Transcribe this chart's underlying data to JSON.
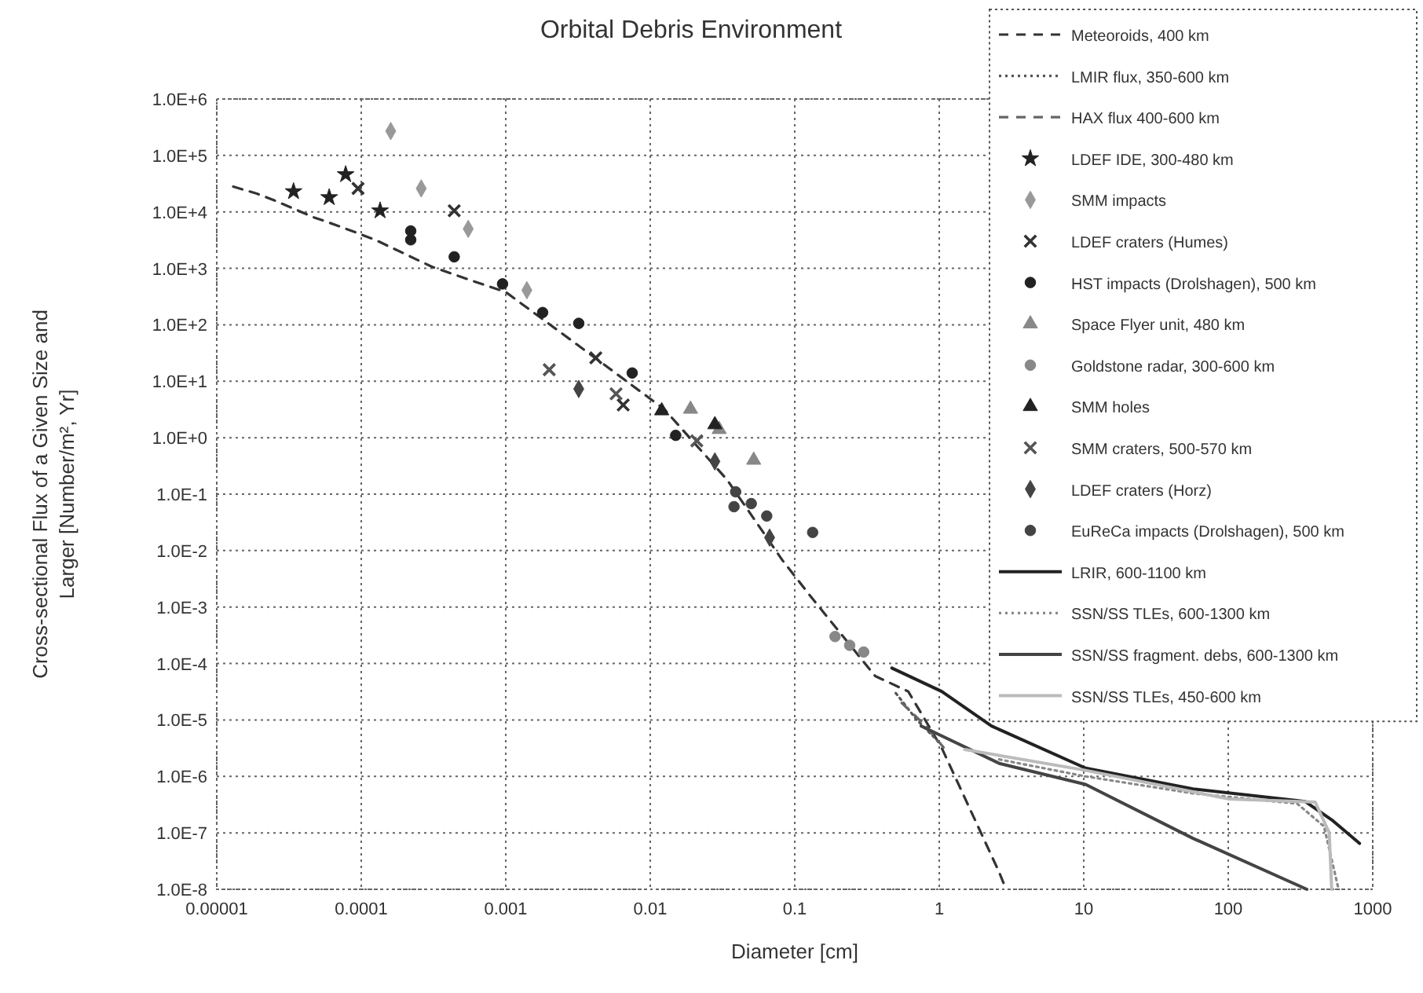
{
  "chart_data": {
    "type": "scatter",
    "title": "Orbital Debris Environment",
    "xlabel": "Diameter [cm]",
    "ylabel": "Cross-sectional Flux of a Given Size and\nLarger [Number/m², Yr]",
    "log": "xy",
    "grid": true,
    "legend": "top right",
    "xlim": [
      1e-05,
      1000
    ],
    "xticks": [
      {
        "value": 1e-05,
        "label": "0.00001"
      },
      {
        "value": 0.0001,
        "label": "0.0001"
      },
      {
        "value": 0.001,
        "label": "0.001"
      },
      {
        "value": 0.01,
        "label": "0.01"
      },
      {
        "value": 0.1,
        "label": "0.1"
      },
      1,
      10,
      100,
      1000
    ],
    "ylim": [
      1e-08,
      1000000.0
    ],
    "yticks": [
      {
        "value": 1000000.0,
        "label": "1.0E+6"
      },
      {
        "value": 100000.0,
        "label": "1.0E+5"
      },
      {
        "value": 10000.0,
        "label": "1.0E+4"
      },
      {
        "value": 1000.0,
        "label": "1.0E+3"
      },
      {
        "value": 100.0,
        "label": "1.0E+2"
      },
      {
        "value": 10.0,
        "label": "1.0E+1"
      },
      {
        "value": 1,
        "label": "1.0E+0"
      },
      {
        "value": 0.1,
        "label": "1.0E-1"
      },
      {
        "value": 0.01,
        "label": "1.0E-2"
      },
      {
        "value": 0.001,
        "label": "1.0E-3"
      },
      {
        "value": 0.0001,
        "label": "1.0E-4"
      },
      {
        "value": 1e-05,
        "label": "1.0E-5"
      },
      {
        "value": 1e-06,
        "label": "1.0E-6"
      },
      {
        "value": 1e-07,
        "label": "1.0E-7"
      },
      {
        "value": 1e-08,
        "label": "1.0E-8"
      }
    ],
    "series": [
      {
        "name": "Meteoroids, 400 km",
        "type": "line",
        "line_style": "dashed",
        "color": "#333333",
        "x": [
          1.3e-05,
          1.9e-05,
          2.5e-05,
          4.7e-05,
          6.5e-05,
          9e-05,
          0.000125,
          0.00017,
          0.00031,
          0.00059,
          0.001,
          0.0036,
          0.0125,
          0.034,
          0.082,
          0.13,
          0.36,
          0.61,
          1.04,
          2.6,
          2.9
        ],
        "values": [
          28000,
          21000,
          16000,
          8000,
          6000,
          4400,
          3200,
          2200,
          1060,
          600,
          380,
          34,
          3.2,
          0.18,
          0.0068,
          0.0015,
          6e-05,
          3.2e-05,
          3.2e-06,
          2e-08,
          1e-08
        ]
      },
      {
        "name": "LMIR flux, 350-600 km",
        "type": "line",
        "line_style": "dotted",
        "color": "#555555",
        "x": [
          0.5,
          0.7,
          1
        ],
        "values": [
          3e-05,
          1e-05,
          4e-06
        ]
      },
      {
        "name": "HAX flux 400-600 km",
        "type": "line",
        "line_style": "dashed",
        "color": "#666666",
        "x": [
          0.55,
          0.8,
          1.1
        ],
        "values": [
          2e-05,
          8e-06,
          3e-06
        ]
      },
      {
        "name": "LDEF IDE, 300-480 km",
        "marker": "star",
        "color": "#222222",
        "x": [
          3.4e-05,
          6e-05,
          7.8e-05,
          0.000135
        ],
        "values": [
          23000,
          18000,
          46000,
          10500
        ]
      },
      {
        "name": "SMM impacts",
        "marker": "diamond",
        "color": "#999999",
        "x": [
          0.00016,
          0.00026,
          0.00055,
          0.0014
        ],
        "values": [
          270000,
          26000,
          5000,
          410
        ]
      },
      {
        "name": "LDEF craters (Humes)",
        "marker": "cross",
        "color": "#333333",
        "x": [
          9.5e-05,
          0.00044,
          0.0042,
          0.0065
        ],
        "values": [
          26000,
          10500,
          26,
          3.8
        ]
      },
      {
        "name": "HST impacts (Drolshagen), 500 km",
        "marker": "circle",
        "color": "#222222",
        "x": [
          0.00022,
          0.00022,
          0.00044,
          0.00095,
          0.0018,
          0.0032,
          0.0075,
          0.015
        ],
        "values": [
          4600,
          3200,
          1600,
          530,
          165,
          106,
          14,
          1.1
        ]
      },
      {
        "name": "Space Flyer unit, 480 km",
        "marker": "triangle",
        "color": "#888888",
        "x": [
          0.019,
          0.03,
          0.052
        ],
        "values": [
          3.2,
          1.4,
          0.4
        ]
      },
      {
        "name": "Goldstone radar, 300-600 km",
        "marker": "circle",
        "color": "#888888",
        "x": [
          0.19,
          0.24,
          0.3
        ],
        "values": [
          0.0003,
          0.00021,
          0.00016
        ]
      },
      {
        "name": "SMM holes",
        "marker": "triangle",
        "color": "#222222",
        "x": [
          0.012,
          0.028
        ],
        "values": [
          3,
          1.7
        ]
      },
      {
        "name": "SMM craters, 500-570 km",
        "marker": "cross",
        "color": "#555555",
        "x": [
          0.002,
          0.0058,
          0.021
        ],
        "values": [
          16,
          6,
          0.88
        ]
      },
      {
        "name": "LDEF craters (Horz)",
        "marker": "diamond",
        "color": "#444444",
        "x": [
          0.0032,
          0.028,
          0.067
        ],
        "values": [
          7.3,
          0.38,
          0.017
        ]
      },
      {
        "name": "EuReCa impacts (Drolshagen), 500 km",
        "marker": "circle",
        "color": "#444444",
        "x": [
          0.039,
          0.038,
          0.05,
          0.064,
          0.133
        ],
        "values": [
          0.11,
          0.06,
          0.068,
          0.041,
          0.021
        ]
      },
      {
        "name": "LRIR, 600-1100 km",
        "type": "line",
        "line_style": "solid",
        "color": "#222222",
        "x": [
          0.47,
          1.04,
          2.3,
          10.3,
          57,
          340,
          520,
          810
        ],
        "values": [
          8.3e-05,
          3.2e-05,
          7.8e-06,
          1.4e-06,
          6e-07,
          3.6e-07,
          1.7e-07,
          6.5e-08
        ]
      },
      {
        "name": "SSN/SS TLEs, 600-1300 km",
        "type": "line",
        "line_style": "dotted",
        "color": "#888888",
        "x": [
          2.6,
          10.3,
          57,
          300,
          460,
          580
        ],
        "values": [
          2e-06,
          1e-06,
          5e-07,
          3.3e-07,
          1.3e-07,
          1e-08
        ]
      },
      {
        "name": "SSN/SS fragment. debs, 600-1300 km",
        "type": "line",
        "line_style": "solid",
        "color": "#444444",
        "x": [
          0.75,
          2.6,
          10.3,
          57,
          350
        ],
        "values": [
          7.8e-06,
          1.7e-06,
          7.2e-07,
          8e-08,
          1e-08
        ]
      },
      {
        "name": "SSN/SS TLEs, 450-600 km",
        "type": "line",
        "line_style": "solid",
        "color": "#bbbbbb",
        "x": [
          1.5,
          10,
          100,
          400,
          500,
          520
        ],
        "values": [
          3e-06,
          1.3e-06,
          4e-07,
          3.5e-07,
          1e-07,
          1e-08
        ]
      }
    ]
  }
}
